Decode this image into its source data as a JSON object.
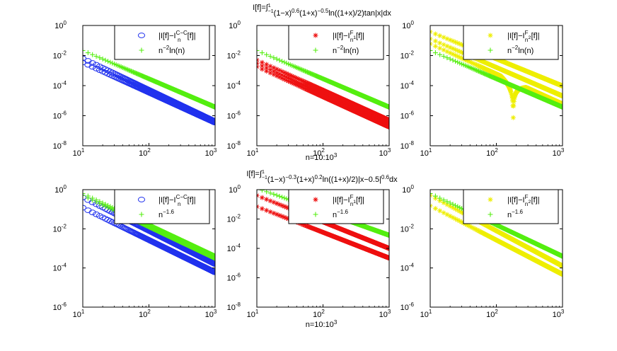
{
  "figure": {
    "row_titles": [
      {
        "main": "I[f]=∫",
        "lim_sup": "1",
        "lim_sub": "−1",
        "rest": [
          [
            "(1−x)",
            ""
          ],
          [
            "0.6",
            "sup"
          ],
          [
            "(1+x)",
            ""
          ],
          [
            "−0.5",
            "sup"
          ],
          [
            "ln((1+x)/2)tan|x|dx",
            ""
          ]
        ]
      },
      {
        "main": "I[f]=∫",
        "lim_sup": "1",
        "lim_sub": "−1",
        "rest": [
          [
            "(1−x)",
            ""
          ],
          [
            "−0.3",
            "sup"
          ],
          [
            "(1+x)",
            ""
          ],
          [
            "0.2",
            "sup"
          ],
          [
            "ln((1+x)/2)|x−0.5|",
            ""
          ],
          [
            "0.6",
            "sup"
          ],
          [
            "dx",
            ""
          ]
        ]
      }
    ],
    "xlabel": {
      "base": "n=10:10",
      "exp": "3"
    },
    "colors": {
      "blue": "#2233ee",
      "red": "#ee1111",
      "yellow": "#eeee00",
      "green": "#55ee11"
    }
  },
  "chart_data": [
    {
      "type": "scatter",
      "row": 0,
      "col": 0,
      "scale": "loglog",
      "xlim": [
        10,
        1000
      ],
      "ylim": [
        1e-08,
        1
      ],
      "xticks": [
        [
          "10",
          "1"
        ],
        [
          "10",
          "2"
        ],
        [
          "10",
          "3"
        ]
      ],
      "yticks": [
        [
          "10",
          "0"
        ],
        [
          "10",
          "-2"
        ],
        [
          "10",
          "-4"
        ],
        [
          "10",
          "-6"
        ],
        [
          "10",
          "-8"
        ]
      ],
      "ytick_exps": [
        0,
        -2,
        -4,
        -6,
        -8
      ],
      "legend": [
        {
          "pre": "|I[f]−I",
          "sup": "C−C",
          "sub": "n",
          "post": "[f]|",
          "marker": "o",
          "color": "blue"
        },
        {
          "pre": "n",
          "sup": "−2",
          "sub": "",
          "post": "ln(n)",
          "marker": "+",
          "color": "green"
        }
      ],
      "series": [
        {
          "name": "error",
          "marker": "o",
          "color": "blue",
          "bands": [
            {
              "c": 0.0065,
              "p": 2.1
            },
            {
              "c": 0.0035,
              "p": 2.0
            }
          ]
        },
        {
          "name": "reference",
          "marker": "+",
          "color": "green",
          "bands": [
            {
              "c": 0.0216,
              "p": 1.88
            }
          ]
        }
      ]
    },
    {
      "type": "scatter",
      "row": 0,
      "col": 1,
      "scale": "loglog",
      "xlim": [
        10,
        1000
      ],
      "ylim": [
        1e-08,
        1
      ],
      "xticks": [
        [
          "10",
          "1"
        ],
        [
          "10",
          "2"
        ],
        [
          "10",
          "3"
        ]
      ],
      "yticks": [
        [
          "10",
          "0"
        ],
        [
          "10",
          "-2"
        ],
        [
          "10",
          "-4"
        ],
        [
          "10",
          "-6"
        ],
        [
          "10",
          "-8"
        ]
      ],
      "ytick_exps": [
        0,
        -2,
        -4,
        -6,
        -8
      ],
      "legend": [
        {
          "pre": "|I[f]−I",
          "sup": "F",
          "sub": "n",
          "post": "₁[f]|",
          "marker": "*",
          "color": "red"
        },
        {
          "pre": "n",
          "sup": "−2",
          "sub": "",
          "post": "ln(n)",
          "marker": "+",
          "color": "green"
        }
      ],
      "series": [
        {
          "name": "error",
          "marker": "*",
          "color": "red",
          "bands": [
            {
              "c": 0.005,
              "p": 2.0
            },
            {
              "c": 0.003,
              "p": 2.05
            },
            {
              "c": 0.0018,
              "p": 2.0
            }
          ]
        },
        {
          "name": "reference",
          "marker": "+",
          "color": "green",
          "bands": [
            {
              "c": 0.0216,
              "p": 1.88
            }
          ]
        }
      ]
    },
    {
      "type": "scatter",
      "row": 0,
      "col": 2,
      "scale": "loglog",
      "xlim": [
        10,
        1000
      ],
      "ylim": [
        1e-08,
        1
      ],
      "xticks": [
        [
          "10",
          "1"
        ],
        [
          "10",
          "2"
        ],
        [
          "10",
          "3"
        ]
      ],
      "yticks": [
        [
          "10",
          "0"
        ],
        [
          "10",
          "-2"
        ],
        [
          "10",
          "-4"
        ],
        [
          "10",
          "-6"
        ],
        [
          "10",
          "-8"
        ]
      ],
      "ytick_exps": [
        0,
        -2,
        -4,
        -6,
        -8
      ],
      "legend": [
        {
          "pre": "|I[f]−I",
          "sup": "F",
          "sub": "n",
          "post": "₂[f]|",
          "marker": "*",
          "color": "yellow"
        },
        {
          "pre": "n",
          "sup": "−2",
          "sub": "",
          "post": "ln(n)",
          "marker": "+",
          "color": "green"
        }
      ],
      "series": [
        {
          "name": "error",
          "marker": "*",
          "color": "yellow",
          "bands": [
            {
              "c": 0.38,
              "p": 1.8
            },
            {
              "c": 0.13,
              "p": 1.9
            },
            {
              "c": 0.06,
              "p": 2.0,
              "dip": 180
            }
          ]
        },
        {
          "name": "reference",
          "marker": "+",
          "color": "green",
          "bands": [
            {
              "c": 0.0216,
              "p": 1.88
            }
          ]
        }
      ]
    },
    {
      "type": "scatter",
      "row": 1,
      "col": 0,
      "scale": "loglog",
      "xlim": [
        10,
        1000
      ],
      "ylim": [
        1e-06,
        1
      ],
      "xticks": [
        [
          "10",
          "1"
        ],
        [
          "10",
          "2"
        ],
        [
          "10",
          "3"
        ]
      ],
      "yticks": [
        [
          "10",
          "0"
        ],
        [
          "10",
          "-2"
        ],
        [
          "10",
          "-4"
        ],
        [
          "10",
          "-6"
        ]
      ],
      "ytick_exps": [
        0,
        -2,
        -4,
        -6
      ],
      "legend": [
        {
          "pre": "|I[f]−I",
          "sup": "C−C",
          "sub": "n",
          "post": "[f]|",
          "marker": "o",
          "color": "blue"
        },
        {
          "pre": "n",
          "sup": "−1.6",
          "sub": "",
          "post": "",
          "marker": "+",
          "color": "green"
        }
      ],
      "series": [
        {
          "name": "error",
          "marker": "o",
          "color": "blue",
          "bands": [
            {
              "c": 0.4,
              "p": 1.7
            },
            {
              "c": 0.12,
              "p": 1.65
            }
          ]
        },
        {
          "name": "reference",
          "marker": "+",
          "color": "green",
          "bands": [
            {
              "c": 0.63,
              "p": 1.6
            },
            {
              "c": 0.5,
              "p": 1.6
            }
          ]
        }
      ]
    },
    {
      "type": "scatter",
      "row": 1,
      "col": 1,
      "scale": "loglog",
      "xlim": [
        10,
        1000
      ],
      "ylim": [
        1e-08,
        1
      ],
      "xticks": [
        [
          "10",
          "1"
        ],
        [
          "10",
          "2"
        ],
        [
          "10",
          "3"
        ]
      ],
      "yticks": [
        [
          "10",
          "0"
        ],
        [
          "10",
          "-2"
        ],
        [
          "10",
          "-4"
        ],
        [
          "10",
          "-6"
        ],
        [
          "10",
          "-8"
        ]
      ],
      "ytick_exps": [
        0,
        -2,
        -4,
        -6,
        -8
      ],
      "legend": [
        {
          "pre": "|I[f]−I",
          "sup": "F",
          "sub": "n",
          "post": "₁[f]|",
          "marker": "*",
          "color": "red"
        },
        {
          "pre": "n",
          "sup": "−1.6",
          "sub": "",
          "post": "",
          "marker": "+",
          "color": "green"
        }
      ],
      "series": [
        {
          "name": "error",
          "marker": "*",
          "color": "red",
          "bands": [
            {
              "c": 0.4,
              "p": 1.8
            },
            {
              "c": 0.07,
              "p": 1.75
            }
          ]
        },
        {
          "name": "reference",
          "marker": "+",
          "color": "green",
          "bands": [
            {
              "c": 1.25,
              "p": 1.6
            }
          ]
        }
      ]
    },
    {
      "type": "scatter",
      "row": 1,
      "col": 2,
      "scale": "loglog",
      "xlim": [
        10,
        1000
      ],
      "ylim": [
        1e-06,
        1
      ],
      "xticks": [
        [
          "10",
          "1"
        ],
        [
          "10",
          "2"
        ],
        [
          "10",
          "3"
        ]
      ],
      "yticks": [
        [
          "10",
          "0"
        ],
        [
          "10",
          "-2"
        ],
        [
          "10",
          "-4"
        ],
        [
          "10",
          "-6"
        ]
      ],
      "ytick_exps": [
        0,
        -2,
        -4,
        -6
      ],
      "legend": [
        {
          "pre": "|I[f]−I",
          "sup": "F",
          "sub": "n",
          "post": "₂[f]|",
          "marker": "*",
          "color": "yellow"
        },
        {
          "pre": "n",
          "sup": "−1.6",
          "sub": "",
          "post": "",
          "marker": "+",
          "color": "green"
        }
      ],
      "series": [
        {
          "name": "error",
          "marker": "*",
          "color": "yellow",
          "bands": [
            {
              "c": 0.5,
              "p": 1.8
            },
            {
              "c": 0.15,
              "p": 1.75
            }
          ]
        },
        {
          "name": "reference",
          "marker": "+",
          "color": "green",
          "bands": [
            {
              "c": 0.63,
              "p": 1.6
            }
          ]
        }
      ]
    }
  ]
}
